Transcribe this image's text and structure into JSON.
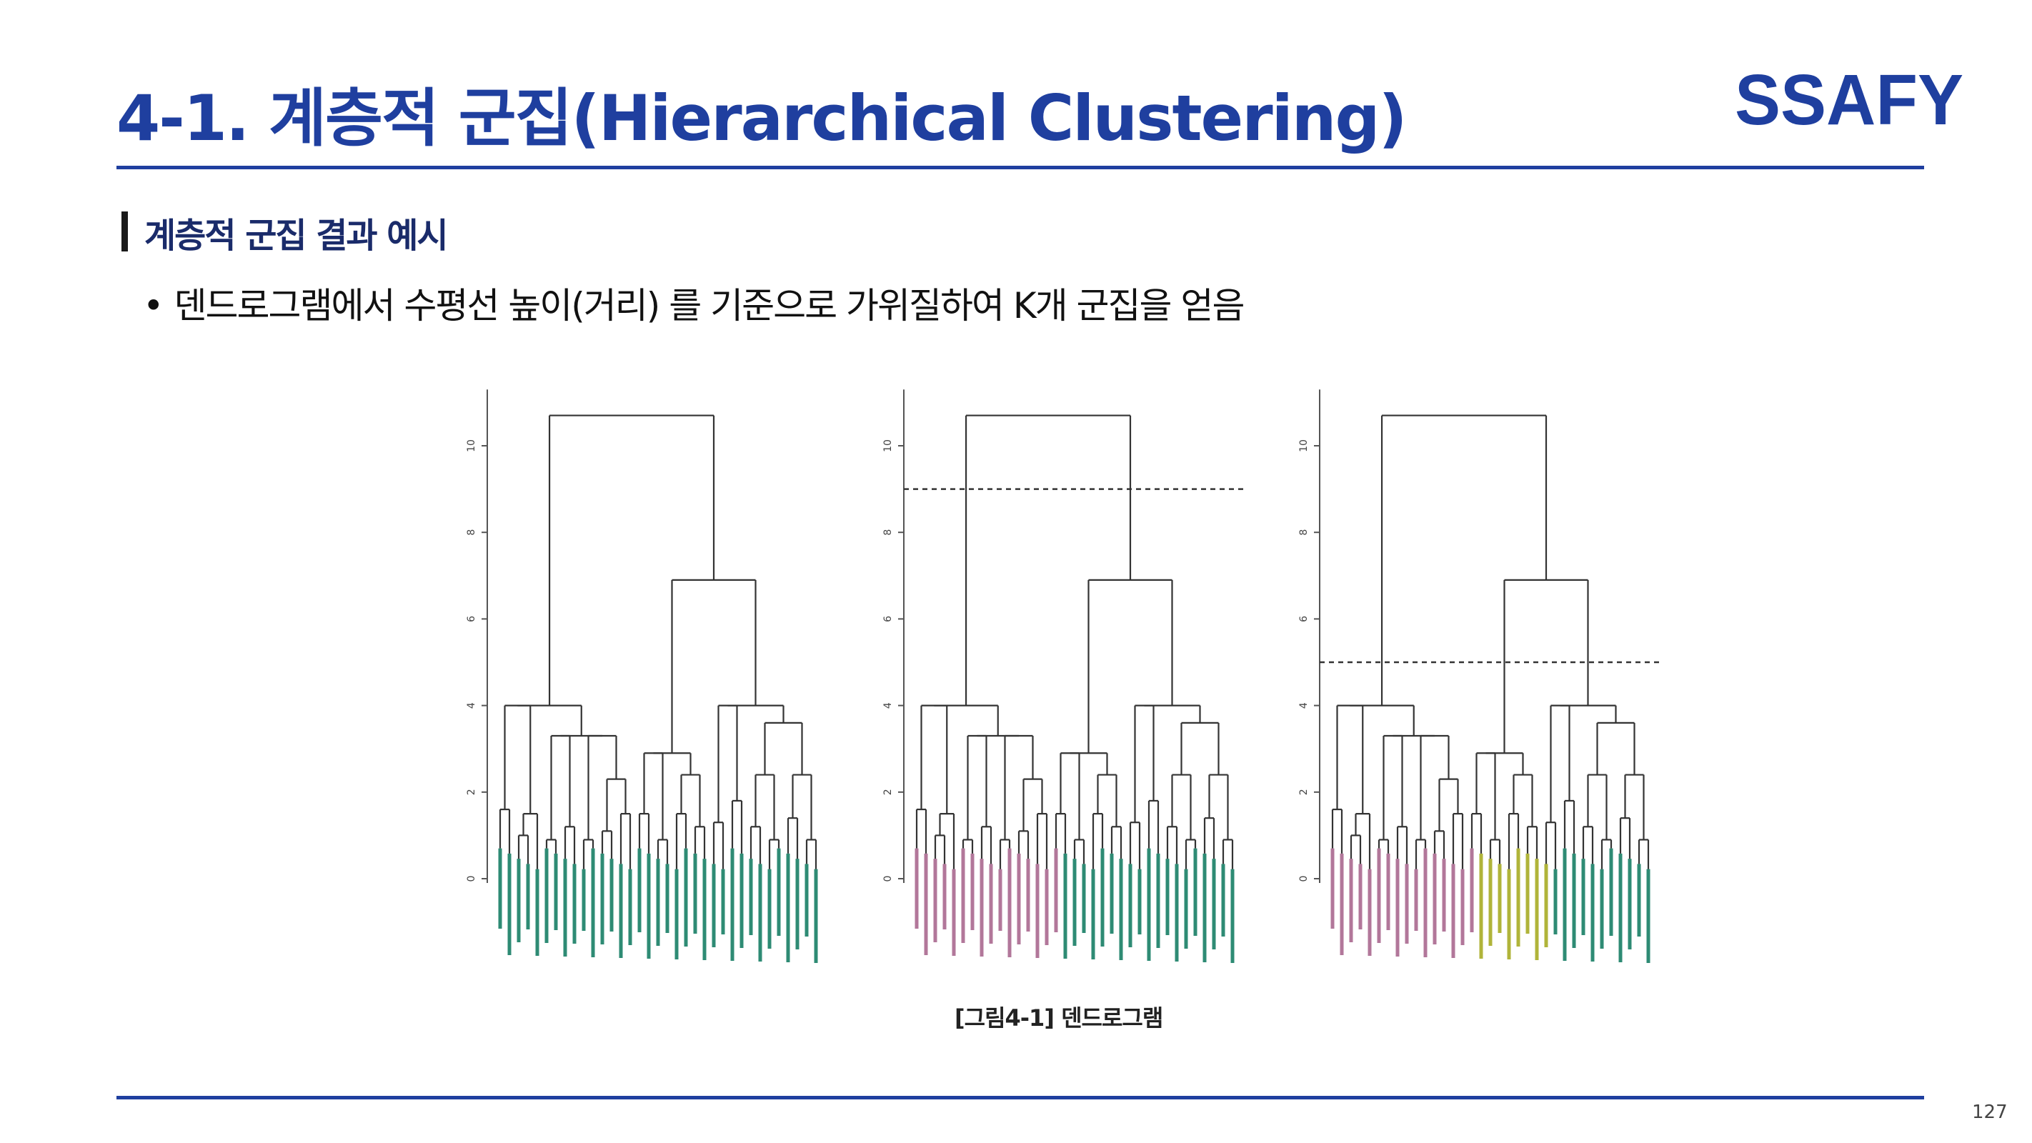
{
  "title": "4-1. 계층적 군집(Hierarchical Clustering)",
  "logo": {
    "text": "SSAFY",
    "color": "#1f3f9f"
  },
  "section": {
    "title": "계층적 군집 결과 예시"
  },
  "bullet": "덴드로그램에서 수평선 높이(거리) 를 기준으로 가위질하여 K개 군집을 얻음",
  "caption": "[그림4-1] 덴드로그램",
  "page_number": "127",
  "figures": [
    {
      "name": "dendrogram-full",
      "y_ticks": [
        "0",
        "2",
        "4",
        "6",
        "8",
        "10"
      ],
      "cut_height": null,
      "clusters": 1
    },
    {
      "name": "dendrogram-cut-2",
      "y_ticks": [
        "0",
        "2",
        "4",
        "6",
        "8",
        "10"
      ],
      "cut_height": 9,
      "clusters": 2
    },
    {
      "name": "dendrogram-cut-3",
      "y_ticks": [
        "0",
        "2",
        "4",
        "6",
        "8",
        "10"
      ],
      "cut_height": 5,
      "clusters": 3
    }
  ],
  "colors": {
    "accent": "#1f3f9f",
    "teal": "#2e8b74",
    "pink": "#b2779a",
    "olive": "#b0b43a",
    "line": "#333333"
  }
}
